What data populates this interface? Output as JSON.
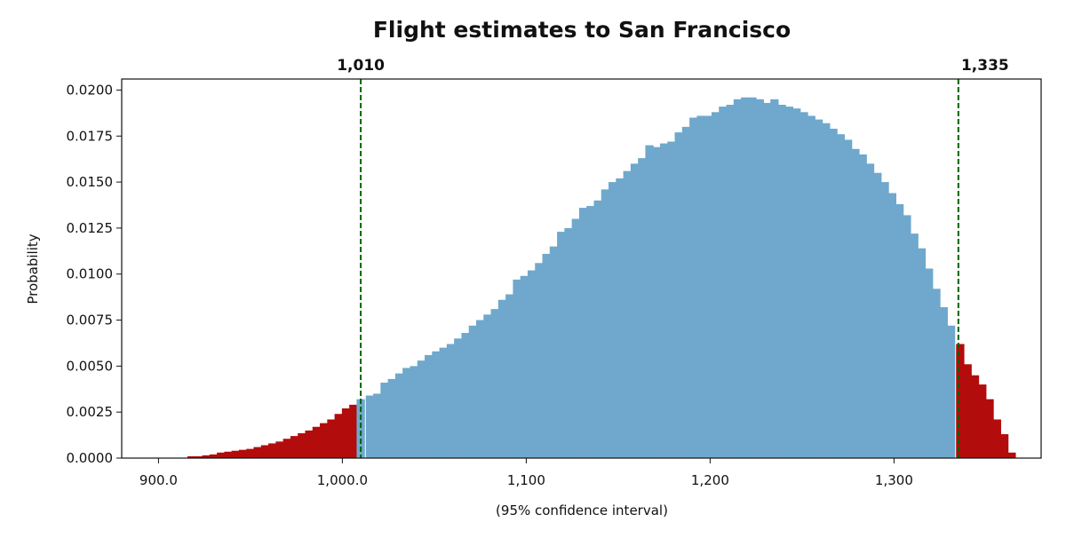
{
  "chart_data": {
    "type": "bar",
    "title": "Flight estimates to San Francisco",
    "xlabel": "(95% confidence interval)",
    "ylabel": "Probability",
    "xlim": [
      880,
      1380
    ],
    "ylim": [
      0,
      0.0206
    ],
    "bin_width": 4.5,
    "x_ticks": [
      {
        "value": 900,
        "label": "900.0"
      },
      {
        "value": 1000,
        "label": "1,000.0"
      },
      {
        "value": 1100,
        "label": "1,100"
      },
      {
        "value": 1200,
        "label": "1,200"
      },
      {
        "value": 1300,
        "label": "1,300"
      }
    ],
    "y_ticks": [
      {
        "value": 0.0,
        "label": "0.0000"
      },
      {
        "value": 0.0025,
        "label": "0.0025"
      },
      {
        "value": 0.005,
        "label": "0.0050"
      },
      {
        "value": 0.0075,
        "label": "0.0075"
      },
      {
        "value": 0.01,
        "label": "0.0100"
      },
      {
        "value": 0.0125,
        "label": "0.0125"
      },
      {
        "value": 0.015,
        "label": "0.0150"
      },
      {
        "value": 0.0175,
        "label": "0.0175"
      },
      {
        "value": 0.02,
        "label": "0.0200"
      }
    ],
    "interval": {
      "lower": 1010,
      "upper": 1335,
      "lower_label": "1,010",
      "upper_label": "1,335"
    },
    "colors": {
      "inside": "#6fa8cc",
      "outside": "#b30c0c",
      "marker_line": "#006400"
    },
    "bins_x": [
      918,
      922,
      926,
      930,
      934,
      938,
      942,
      946,
      950,
      954,
      958,
      962,
      966,
      970,
      974,
      978,
      982,
      986,
      990,
      994,
      998,
      1002,
      1006,
      1010,
      1015,
      1019,
      1023,
      1027,
      1031,
      1035,
      1039,
      1043,
      1047,
      1051,
      1055,
      1059,
      1063,
      1067,
      1071,
      1075,
      1079,
      1083,
      1087,
      1091,
      1095,
      1099,
      1103,
      1107,
      1111,
      1115,
      1119,
      1123,
      1127,
      1131,
      1135,
      1139,
      1143,
      1147,
      1151,
      1155,
      1159,
      1163,
      1167,
      1171,
      1175,
      1179,
      1183,
      1187,
      1191,
      1195,
      1199,
      1203,
      1207,
      1211,
      1215,
      1219,
      1223,
      1227,
      1231,
      1235,
      1239,
      1243,
      1247,
      1251,
      1255,
      1259,
      1263,
      1267,
      1271,
      1275,
      1279,
      1283,
      1287,
      1291,
      1295,
      1299,
      1303,
      1307,
      1311,
      1315,
      1319,
      1323,
      1327,
      1331,
      1336,
      1340,
      1344,
      1348,
      1352,
      1356,
      1360,
      1364
    ],
    "values": [
      0.0001,
      0.0001,
      0.00015,
      0.0002,
      0.0003,
      0.00035,
      0.0004,
      0.00045,
      0.0005,
      0.0006,
      0.0007,
      0.0008,
      0.0009,
      0.00105,
      0.0012,
      0.00135,
      0.0015,
      0.0017,
      0.0019,
      0.0021,
      0.0024,
      0.0027,
      0.0029,
      0.0032,
      0.0034,
      0.0035,
      0.0041,
      0.0043,
      0.0046,
      0.0049,
      0.005,
      0.0053,
      0.0056,
      0.0058,
      0.006,
      0.0062,
      0.0065,
      0.0068,
      0.0072,
      0.0075,
      0.0078,
      0.0081,
      0.0086,
      0.0089,
      0.0097,
      0.0099,
      0.0102,
      0.0106,
      0.0111,
      0.0115,
      0.0123,
      0.0125,
      0.013,
      0.0136,
      0.0137,
      0.014,
      0.0146,
      0.015,
      0.0152,
      0.0156,
      0.016,
      0.0163,
      0.017,
      0.0169,
      0.0171,
      0.0172,
      0.0177,
      0.018,
      0.0185,
      0.0186,
      0.0186,
      0.0188,
      0.0191,
      0.0192,
      0.0195,
      0.0196,
      0.0196,
      0.0195,
      0.0193,
      0.0195,
      0.0192,
      0.0191,
      0.019,
      0.0188,
      0.0186,
      0.0184,
      0.0182,
      0.0179,
      0.0176,
      0.0173,
      0.0168,
      0.0165,
      0.016,
      0.0155,
      0.015,
      0.0144,
      0.0138,
      0.0132,
      0.0122,
      0.0114,
      0.0103,
      0.0092,
      0.0082,
      0.0072,
      0.0062,
      0.0051,
      0.0045,
      0.004,
      0.0032,
      0.0021,
      0.0013,
      0.0003
    ]
  }
}
